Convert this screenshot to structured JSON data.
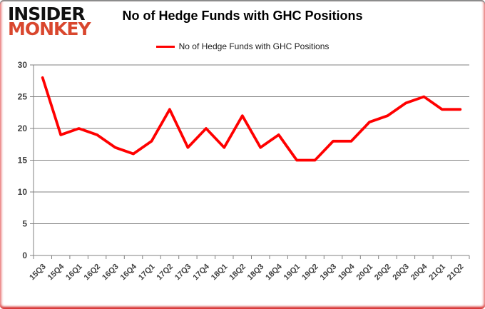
{
  "logo": {
    "line1": "INSIDER",
    "line2": "MONKEY"
  },
  "header": {
    "title": "No of Hedge Funds with GHC Positions"
  },
  "legend": {
    "label": "No of Hedge Funds with GHC Positions"
  },
  "colors": {
    "series_red": "#ff0000",
    "logo_red": "#d9472e",
    "logo_black": "#111111",
    "grid_grey": "#808080",
    "tick_text": "#404040",
    "frame_top_grey": "#8c8c8c",
    "frame_glow_red": "#cc0a0a",
    "background": "#ffffff"
  },
  "chart_data": {
    "type": "line",
    "title": "No of Hedge Funds with GHC Positions",
    "xlabel": "",
    "ylabel": "",
    "categories": [
      "15Q3",
      "15Q4",
      "16Q1",
      "16Q2",
      "16Q3",
      "16Q4",
      "17Q1",
      "17Q2",
      "17Q3",
      "17Q4",
      "18Q1",
      "18Q2",
      "18Q3",
      "18Q4",
      "19Q1",
      "19Q2",
      "19Q3",
      "19Q4",
      "20Q1",
      "20Q2",
      "20Q3",
      "20Q4",
      "21Q1",
      "21Q2"
    ],
    "series": [
      {
        "name": "No of Hedge Funds with GHC Positions",
        "color": "#ff0000",
        "values": [
          28,
          19,
          20,
          19,
          17,
          16,
          18,
          23,
          17,
          20,
          17,
          22,
          17,
          19,
          15,
          15,
          18,
          18,
          21,
          22,
          24,
          25,
          23,
          23
        ]
      }
    ],
    "ylim": [
      0,
      30
    ],
    "yticks": [
      0,
      5,
      10,
      15,
      20,
      25,
      30
    ],
    "grid": true,
    "legend_position": "top-center"
  }
}
